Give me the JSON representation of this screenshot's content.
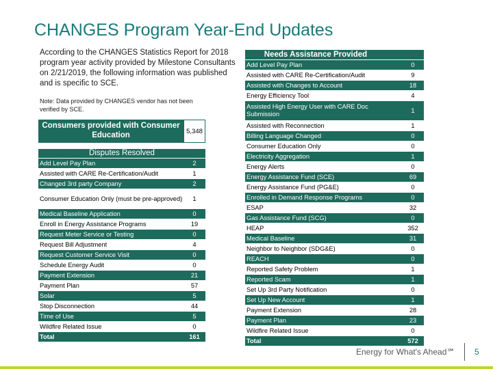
{
  "title": "CHANGES Program Year-End Updates",
  "intro": "According to the CHANGES Statistics Report for 2018 program year activity provided by Milestone Consultants on 2/21/2019, the following information was published and is specific to SCE.",
  "note": "Note: Data provided by CHANGES vendor has not been verified by SCE.",
  "consumers": {
    "label": "Consumers provided with Consumer Education",
    "value": "5,348"
  },
  "disputes": {
    "heading": "Disputes Resolved",
    "rows": [
      {
        "label": "Add Level Pay Plan",
        "value": "2"
      },
      {
        "label": "Assisted with CARE Re-Certification/Audit",
        "value": "1"
      },
      {
        "label": "Changed 3rd party Company",
        "value": "2"
      },
      {
        "label": "Consumer Education Only (must be pre-approved)",
        "value": "1"
      },
      {
        "label": "Medical Baseline Application",
        "value": "0"
      },
      {
        "label": "Enroll in Energy Assistance Programs",
        "value": "19"
      },
      {
        "label": "Request Meter Service or Testing",
        "value": "0"
      },
      {
        "label": "Request Bill Adjustment",
        "value": "4"
      },
      {
        "label": "Request Customer Service Visit",
        "value": "0"
      },
      {
        "label": "Schedule Energy Audit",
        "value": "0"
      },
      {
        "label": "Payment Extension",
        "value": "21"
      },
      {
        "label": "Payment Plan",
        "value": "57"
      },
      {
        "label": "Solar",
        "value": "5"
      },
      {
        "label": "Stop Disconnection",
        "value": "44"
      },
      {
        "label": "Time of Use",
        "value": "5"
      },
      {
        "label": "Wildfire Related Issue",
        "value": "0"
      }
    ],
    "total_label": "Total",
    "total_value": "161"
  },
  "needs": {
    "heading": "Needs Assistance Provided",
    "rows": [
      {
        "label": "Add Level Pay Plan",
        "value": "0"
      },
      {
        "label": "Assisted with CARE Re-Certification/Audit",
        "value": "9"
      },
      {
        "label": "Assisted with Changes to Account",
        "value": "18"
      },
      {
        "label": "Energy Efficiency Tool",
        "value": "4"
      },
      {
        "label": "Assisted High Energy User with CARE Doc Submission",
        "value": "1"
      },
      {
        "label": "Assisted with Reconnection",
        "value": "1"
      },
      {
        "label": "Billing Language Changed",
        "value": "0"
      },
      {
        "label": "Consumer Education Only",
        "value": "0"
      },
      {
        "label": "Electricity Aggregation",
        "value": "1"
      },
      {
        "label": "Energy Alerts",
        "value": "0"
      },
      {
        "label": "Energy Assistance Fund (SCE)",
        "value": "69"
      },
      {
        "label": "Energy Assistance Fund (PG&E)",
        "value": "0"
      },
      {
        "label": "Enrolled in Demand Response Programs",
        "value": "0"
      },
      {
        "label": "ESAP",
        "value": "32"
      },
      {
        "label": "Gas Assistance Fund (SCG)",
        "value": "0"
      },
      {
        "label": "HEAP",
        "value": "352"
      },
      {
        "label": "Medical Baseline",
        "value": "31"
      },
      {
        "label": "Neighbor to Neighbor (SDG&E)",
        "value": "0"
      },
      {
        "label": "REACH",
        "value": "0"
      },
      {
        "label": "Reported Safety Problem",
        "value": "1"
      },
      {
        "label": "Reported Scam",
        "value": "1"
      },
      {
        "label": "Set Up 3rd Party Notification",
        "value": "0"
      },
      {
        "label": "Set Up New Account",
        "value": "1"
      },
      {
        "label": "Payment Extension",
        "value": "28"
      },
      {
        "label": "Payment Plan",
        "value": "23"
      },
      {
        "label": "Wildfire Related Issue",
        "value": "0"
      }
    ],
    "total_label": "Total",
    "total_value": "572"
  },
  "footer": {
    "tagline": "Energy for What's Ahead℠",
    "page": "5"
  },
  "colors": {
    "accent": "#1d6b5c",
    "title": "#1b7a7a",
    "footer_bar": "#bcd630"
  }
}
